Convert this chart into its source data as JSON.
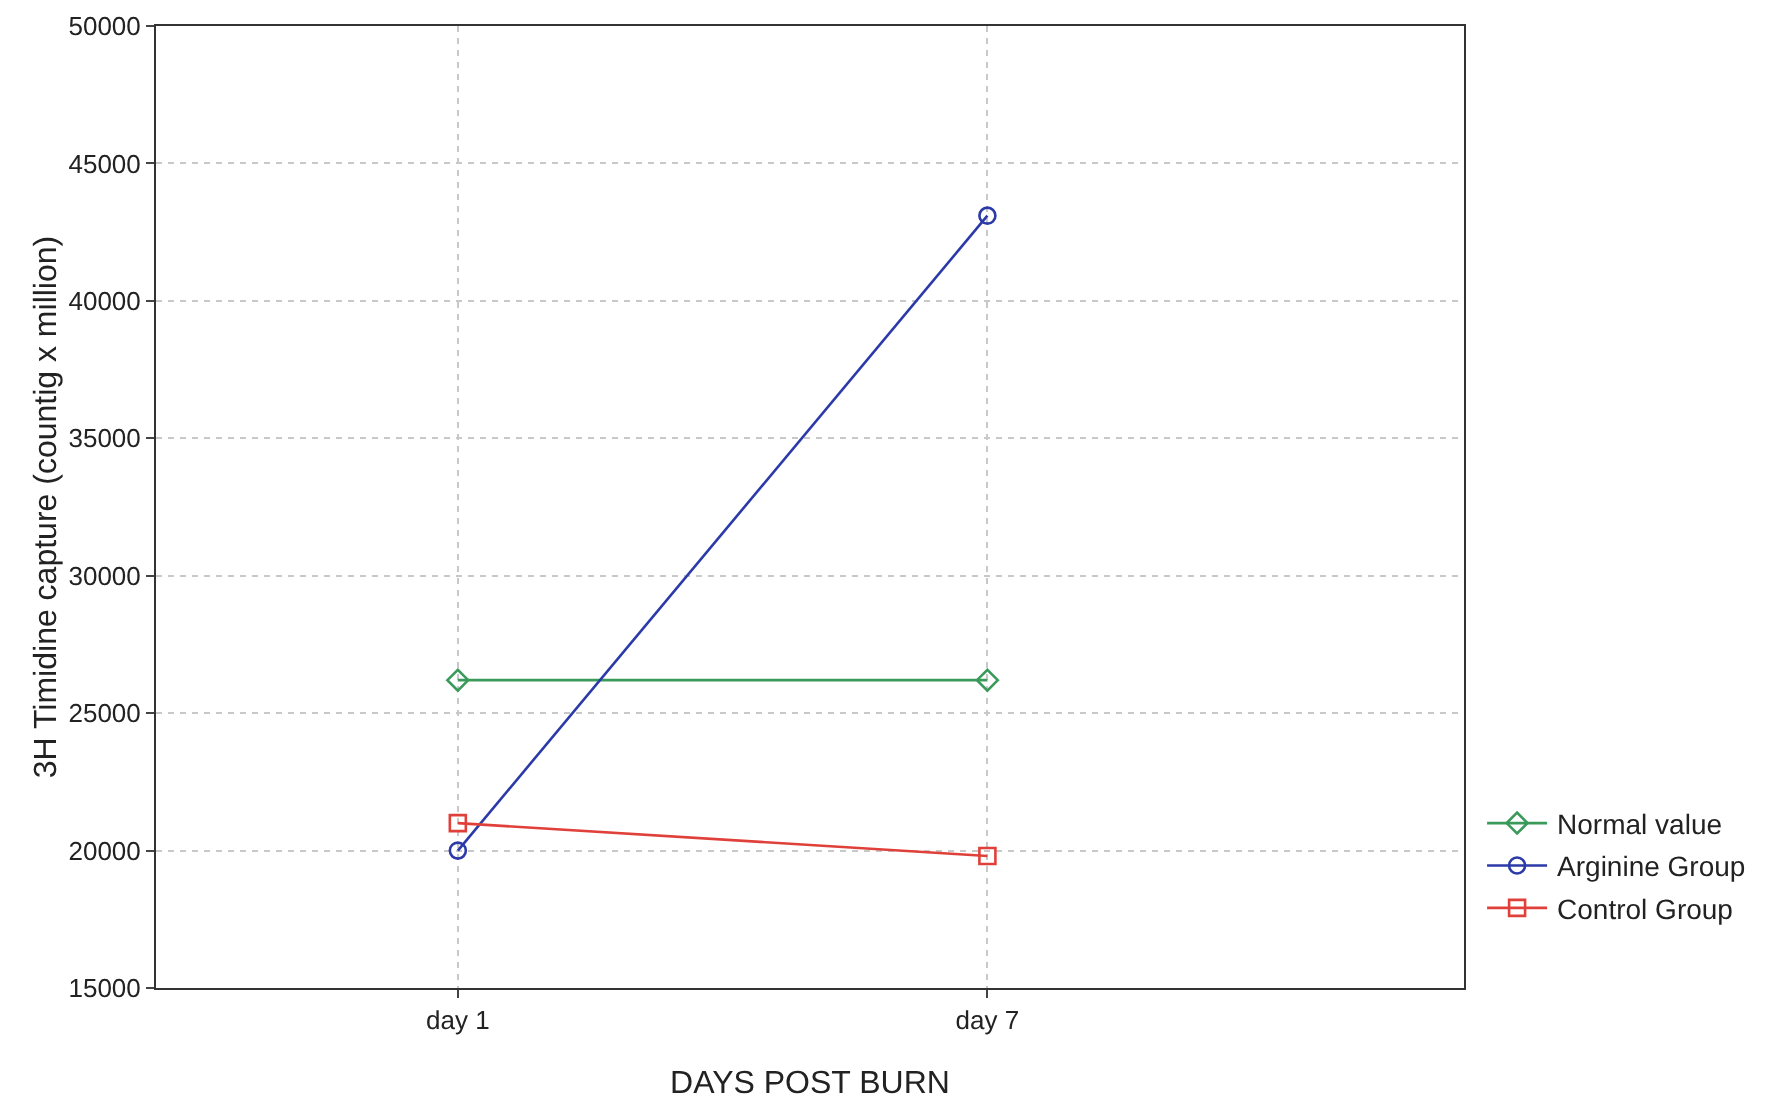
{
  "chart_data": {
    "type": "line",
    "xlabel": "DAYS POST BURN",
    "ylabel": "3H Timidine capture (countig x million)",
    "categories": [
      "day 1",
      "day 7"
    ],
    "ylim": [
      15000,
      50000
    ],
    "yticks": [
      15000,
      20000,
      25000,
      30000,
      35000,
      40000,
      45000,
      50000
    ],
    "grid": true,
    "legend": "bottom right",
    "line_style": "solid",
    "series": [
      {
        "name": "Normal value",
        "color": "#3a9a5a",
        "marker": "diamond",
        "values": [
          26200,
          26200
        ]
      },
      {
        "name": "Arginine Group",
        "color": "#2b3aa8",
        "marker": "circle",
        "values": [
          20000,
          43100
        ]
      },
      {
        "name": "Control Group",
        "color": "#e0403a",
        "marker": "square",
        "values": [
          21000,
          19800
        ]
      }
    ]
  }
}
